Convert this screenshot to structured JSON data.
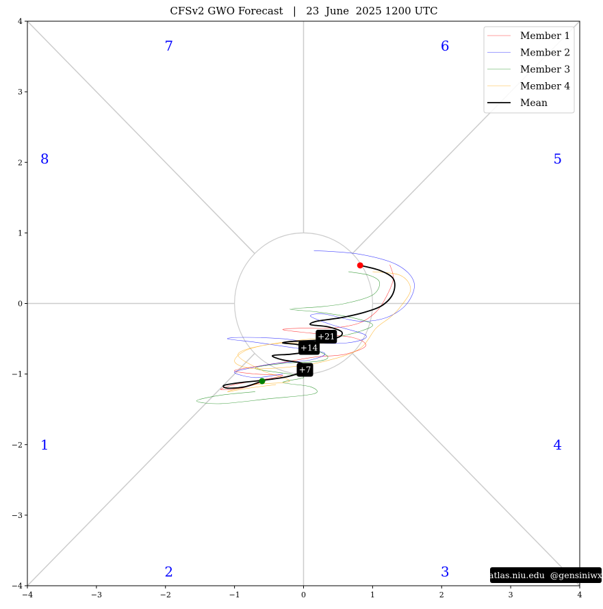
{
  "chart_data": {
    "type": "line",
    "title": "CFSv2 GWO Forecast   |   23  June  2025 1200 UTC",
    "xlim": [
      -4,
      4
    ],
    "ylim": [
      -4,
      4
    ],
    "x_ticks": [
      -4,
      -3,
      -2,
      -1,
      0,
      1,
      2,
      3,
      4
    ],
    "y_ticks": [
      -4,
      -3,
      -2,
      -1,
      0,
      1,
      2,
      3,
      4
    ],
    "x_tick_labels": [
      "−4",
      "−3",
      "−2",
      "−1",
      "0",
      "1",
      "2",
      "3",
      "4"
    ],
    "y_tick_labels": [
      "−4",
      "−3",
      "−2",
      "−1",
      "0",
      "1",
      "2",
      "3",
      "4"
    ],
    "grid": false,
    "legend_position": "top-right",
    "phases": [
      {
        "label": "1",
        "x": -3.75,
        "y": -2.0
      },
      {
        "label": "2",
        "x": -1.95,
        "y": -3.8
      },
      {
        "label": "3",
        "x": 2.05,
        "y": -3.8
      },
      {
        "label": "4",
        "x": 3.68,
        "y": -2.0
      },
      {
        "label": "5",
        "x": 3.68,
        "y": 2.05
      },
      {
        "label": "6",
        "x": 2.05,
        "y": 3.65
      },
      {
        "label": "7",
        "x": -1.95,
        "y": 3.65
      },
      {
        "label": "8",
        "x": -3.75,
        "y": 2.05
      }
    ],
    "series": [
      {
        "name": "Member 1",
        "color": "#ff0000",
        "width": 0.6,
        "points": [
          [
            1.25,
            0.55
          ],
          [
            1.3,
            0.35
          ],
          [
            1.2,
            0.1
          ],
          [
            1.05,
            -0.12
          ],
          [
            0.8,
            -0.28
          ],
          [
            0.4,
            -0.35
          ],
          [
            0.0,
            -0.35
          ],
          [
            -0.3,
            -0.37
          ],
          [
            0.1,
            -0.42
          ],
          [
            0.7,
            -0.48
          ],
          [
            0.9,
            -0.6
          ],
          [
            0.6,
            -0.72
          ],
          [
            0.15,
            -0.76
          ],
          [
            -0.2,
            -0.82
          ],
          [
            -0.6,
            -0.88
          ],
          [
            -1.0,
            -0.95
          ],
          [
            -0.7,
            -1.0
          ],
          [
            -0.3,
            -1.02
          ],
          [
            -0.6,
            -1.08
          ],
          [
            -1.0,
            -1.15
          ],
          [
            -1.2,
            -1.22
          ],
          [
            -0.9,
            -1.2
          ],
          [
            -0.55,
            -1.1
          ]
        ]
      },
      {
        "name": "Member 2",
        "color": "#0000ff",
        "width": 0.6,
        "points": [
          [
            0.15,
            0.75
          ],
          [
            0.8,
            0.7
          ],
          [
            1.35,
            0.55
          ],
          [
            1.6,
            0.3
          ],
          [
            1.5,
            0.0
          ],
          [
            1.2,
            -0.2
          ],
          [
            0.8,
            -0.25
          ],
          [
            0.3,
            -0.15
          ],
          [
            0.1,
            -0.18
          ],
          [
            0.4,
            -0.3
          ],
          [
            0.9,
            -0.45
          ],
          [
            0.7,
            -0.55
          ],
          [
            0.2,
            -0.56
          ],
          [
            -0.3,
            -0.5
          ],
          [
            -0.85,
            -0.48
          ],
          [
            -1.1,
            -0.5
          ],
          [
            -0.7,
            -0.55
          ],
          [
            -0.2,
            -0.62
          ],
          [
            0.3,
            -0.7
          ],
          [
            0.1,
            -0.8
          ],
          [
            -0.4,
            -0.85
          ],
          [
            -0.8,
            -0.92
          ],
          [
            -1.0,
            -0.98
          ],
          [
            -0.7,
            -1.05
          ],
          [
            -0.3,
            -1.0
          ]
        ]
      },
      {
        "name": "Member 3",
        "color": "#008000",
        "width": 0.6,
        "points": [
          [
            0.65,
            0.45
          ],
          [
            0.95,
            0.4
          ],
          [
            1.1,
            0.3
          ],
          [
            1.0,
            0.12
          ],
          [
            0.6,
            0.0
          ],
          [
            0.2,
            -0.05
          ],
          [
            -0.2,
            -0.08
          ],
          [
            0.2,
            -0.12
          ],
          [
            0.7,
            -0.2
          ],
          [
            1.0,
            -0.3
          ],
          [
            0.8,
            -0.4
          ],
          [
            0.4,
            -0.5
          ],
          [
            0.1,
            -0.6
          ],
          [
            0.35,
            -0.75
          ],
          [
            0.2,
            -0.82
          ],
          [
            -0.3,
            -0.85
          ],
          [
            -0.7,
            -0.92
          ],
          [
            -0.2,
            -1.0
          ],
          [
            0.0,
            -1.05
          ],
          [
            -0.3,
            -1.12
          ],
          [
            0.1,
            -1.18
          ],
          [
            0.15,
            -1.28
          ],
          [
            -0.5,
            -1.35
          ],
          [
            -1.2,
            -1.42
          ],
          [
            -1.55,
            -1.38
          ],
          [
            -1.2,
            -1.3
          ],
          [
            -0.7,
            -1.25
          ]
        ]
      },
      {
        "name": "Member 4",
        "color": "#ffa500",
        "width": 0.6,
        "points": [
          [
            1.0,
            0.45
          ],
          [
            1.4,
            0.4
          ],
          [
            1.55,
            0.2
          ],
          [
            1.4,
            -0.05
          ],
          [
            1.25,
            -0.2
          ],
          [
            1.05,
            -0.35
          ],
          [
            0.8,
            -0.65
          ],
          [
            0.3,
            -0.82
          ],
          [
            -0.2,
            -0.9
          ],
          [
            -0.75,
            -0.92
          ],
          [
            -1.0,
            -0.82
          ],
          [
            -0.8,
            -0.65
          ],
          [
            -0.3,
            -0.55
          ],
          [
            0.2,
            -0.5
          ],
          [
            0.1,
            -0.55
          ],
          [
            -0.5,
            -0.58
          ],
          [
            -0.95,
            -0.72
          ],
          [
            -0.6,
            -0.95
          ],
          [
            -0.2,
            -1.1
          ],
          [
            -0.7,
            -1.15
          ],
          [
            -1.1,
            -1.25
          ],
          [
            -0.8,
            -1.2
          ],
          [
            -0.4,
            -1.15
          ]
        ]
      },
      {
        "name": "Mean",
        "color": "#000000",
        "width": 1.8,
        "points": [
          [
            0.82,
            0.54
          ],
          [
            1.1,
            0.47
          ],
          [
            1.3,
            0.35
          ],
          [
            1.3,
            0.15
          ],
          [
            1.15,
            -0.02
          ],
          [
            0.9,
            -0.12
          ],
          [
            0.55,
            -0.2
          ],
          [
            0.2,
            -0.25
          ],
          [
            0.1,
            -0.3
          ],
          [
            0.35,
            -0.33
          ],
          [
            0.55,
            -0.4
          ],
          [
            0.5,
            -0.48
          ],
          [
            0.2,
            -0.52
          ],
          [
            0.0,
            -0.53
          ],
          [
            -0.2,
            -0.54
          ],
          [
            -0.3,
            -0.56
          ],
          [
            -0.1,
            -0.58
          ],
          [
            0.1,
            -0.62
          ],
          [
            0.2,
            -0.66
          ],
          [
            0.05,
            -0.69
          ],
          [
            -0.2,
            -0.72
          ],
          [
            -0.45,
            -0.74
          ],
          [
            -0.3,
            -0.8
          ],
          [
            -0.05,
            -0.84
          ],
          [
            0.05,
            -0.9
          ],
          [
            0.0,
            -0.95
          ],
          [
            -0.1,
            -1.0
          ],
          [
            -0.3,
            -1.05
          ],
          [
            -0.6,
            -1.09
          ],
          [
            -0.9,
            -1.12
          ],
          [
            -1.15,
            -1.16
          ],
          [
            -1.1,
            -1.2
          ],
          [
            -0.85,
            -1.18
          ],
          [
            -0.6,
            -1.1
          ]
        ]
      }
    ],
    "start_point": {
      "x": -0.6,
      "y": -1.1,
      "color": "#008000"
    },
    "end_point": {
      "x": 0.82,
      "y": 0.54,
      "color": "#ff0000"
    },
    "day_labels": [
      {
        "text": "+7",
        "x": 0.02,
        "y": -0.94
      },
      {
        "text": "+14",
        "x": 0.08,
        "y": -0.63
      },
      {
        "text": "+21",
        "x": 0.33,
        "y": -0.47
      }
    ],
    "credit": "atlas.niu.edu  @gensiniwx"
  }
}
